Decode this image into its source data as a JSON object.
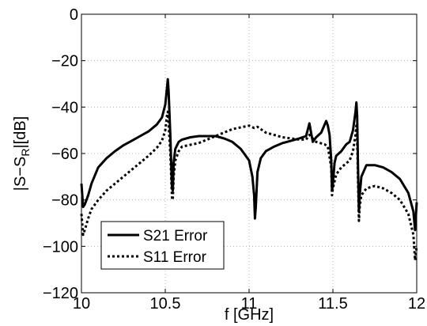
{
  "chart_data": {
    "type": "line",
    "xlabel": "f [GHz]",
    "ylabel": {
      "main": "|S−S",
      "sub": "R",
      "rest": "|[dB]"
    },
    "xlim": [
      10,
      12
    ],
    "ylim": [
      -120,
      0
    ],
    "xticks": [
      10,
      10.5,
      11,
      11.5,
      12
    ],
    "xtick_labels": [
      "10",
      "10.5",
      "11",
      "11.5",
      "12"
    ],
    "yticks": [
      0,
      -20,
      -40,
      -60,
      -80,
      -100,
      -120
    ],
    "ytick_labels": [
      "0",
      "−20",
      "−40",
      "−60",
      "−80",
      "−100",
      "−120"
    ],
    "grid": true,
    "legend_position": "bottom-left",
    "series": [
      {
        "name": "S21 Error",
        "style": "solid",
        "color": "#000000",
        "x": [
          10.0,
          10.01,
          10.02,
          10.04,
          10.06,
          10.1,
          10.15,
          10.2,
          10.25,
          10.3,
          10.35,
          10.4,
          10.45,
          10.48,
          10.5,
          10.51,
          10.515,
          10.52,
          10.53,
          10.54,
          10.545,
          10.55,
          10.56,
          10.58,
          10.6,
          10.65,
          10.7,
          10.8,
          10.85,
          10.9,
          10.95,
          11.0,
          11.02,
          11.03,
          11.035,
          11.04,
          11.05,
          11.07,
          11.1,
          11.15,
          11.2,
          11.25,
          11.3,
          11.34,
          11.36,
          11.37,
          11.38,
          11.4,
          11.43,
          11.46,
          11.47,
          11.48,
          11.49,
          11.495,
          11.5,
          11.51,
          11.52,
          11.55,
          11.58,
          11.6,
          11.62,
          11.635,
          11.64,
          11.645,
          11.65,
          11.655,
          11.66,
          11.67,
          11.7,
          11.75,
          11.8,
          11.85,
          11.9,
          11.95,
          11.98,
          11.99,
          12.0
        ],
        "y": [
          -73,
          -83,
          -82,
          -78,
          -73,
          -66,
          -62,
          -59,
          -56.5,
          -54.5,
          -52.5,
          -50.5,
          -47.5,
          -44.5,
          -39,
          -32,
          -28,
          -33,
          -52,
          -75,
          -76,
          -64,
          -58,
          -55,
          -54,
          -53,
          -52.5,
          -52.5,
          -53.5,
          -55,
          -58,
          -63,
          -70,
          -78,
          -88,
          -83,
          -68,
          -62,
          -59,
          -57,
          -55.5,
          -54.5,
          -53.5,
          -52.5,
          -47,
          -51,
          -55,
          -53,
          -51,
          -46,
          -48,
          -52,
          -63,
          -76,
          -73,
          -64,
          -61,
          -59,
          -56,
          -55,
          -50,
          -42,
          -38,
          -44,
          -66,
          -85,
          -78,
          -70,
          -65,
          -65,
          -66,
          -68,
          -71,
          -77,
          -85,
          -93,
          -81
        ]
      },
      {
        "name": "S11 Error",
        "style": "dotted",
        "color": "#000000",
        "x": [
          10.0,
          10.01,
          10.02,
          10.04,
          10.06,
          10.1,
          10.15,
          10.2,
          10.25,
          10.3,
          10.35,
          10.4,
          10.45,
          10.48,
          10.5,
          10.51,
          10.515,
          10.52,
          10.53,
          10.54,
          10.545,
          10.55,
          10.56,
          10.58,
          10.6,
          10.7,
          10.8,
          10.9,
          11.0,
          11.03,
          11.05,
          11.07,
          11.1,
          11.2,
          11.3,
          11.34,
          11.36,
          11.38,
          11.4,
          11.45,
          11.47,
          11.49,
          11.495,
          11.5,
          11.52,
          11.55,
          11.6,
          11.62,
          11.635,
          11.64,
          11.645,
          11.65,
          11.655,
          11.66,
          11.67,
          11.7,
          11.75,
          11.8,
          11.85,
          11.9,
          11.95,
          11.98,
          11.99,
          12.0
        ],
        "y": [
          -86,
          -95,
          -93,
          -88,
          -84,
          -80,
          -76,
          -73,
          -70,
          -67,
          -64,
          -61,
          -57.5,
          -54.5,
          -50,
          -44,
          -42,
          -47,
          -60,
          -79,
          -80,
          -70,
          -63,
          -59,
          -57,
          -55.5,
          -52.5,
          -49.5,
          -48,
          -49,
          -48.5,
          -49.5,
          -51,
          -53,
          -54,
          -54,
          -52,
          -53.5,
          -55,
          -56,
          -57,
          -66,
          -78,
          -75,
          -69,
          -66,
          -63,
          -59,
          -52,
          -48,
          -54,
          -72,
          -89,
          -83,
          -78,
          -75,
          -74,
          -75,
          -77,
          -80,
          -86,
          -95,
          -106,
          -100
        ]
      }
    ]
  }
}
